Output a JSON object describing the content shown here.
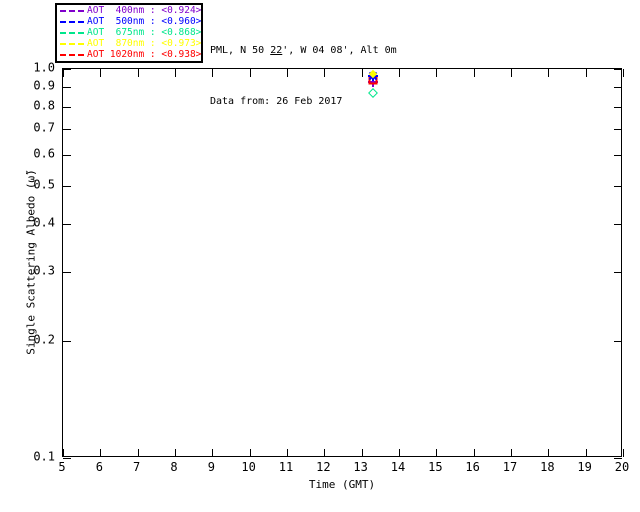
{
  "header": {
    "title_pre": "PML, N 50 ",
    "title_lat_min": "22",
    "title_post": "', W 04 08', Alt 0m",
    "subtitle": "Data from: 26 Feb 2017"
  },
  "legend": {
    "items": [
      {
        "label": "AOT  400nm : <0.924>",
        "wavelength_nm": 400,
        "mean_ssa": 0.924,
        "color": "#8000cc",
        "line_style": "dashed"
      },
      {
        "label": "AOT  500nm : <0.960>",
        "wavelength_nm": 500,
        "mean_ssa": 0.96,
        "color": "#0000ff",
        "line_style": "dashed"
      },
      {
        "label": "AOT  675nm : <0.868>",
        "wavelength_nm": 675,
        "mean_ssa": 0.868,
        "color": "#00e68c",
        "line_style": "dashed"
      },
      {
        "label": "AOT  870nm : <0.973>",
        "wavelength_nm": 870,
        "mean_ssa": 0.973,
        "color": "#ffff00",
        "line_style": "dashed"
      },
      {
        "label": "AOT 1020nm : <0.938>",
        "wavelength_nm": 1020,
        "mean_ssa": 0.938,
        "color": "#ff0000",
        "line_style": "dashed"
      }
    ]
  },
  "chart_data": {
    "type": "scatter",
    "title": "PML, N 50 22', W 04 08', Alt 0m",
    "subtitle": "Data from: 26 Feb 2017",
    "xlabel": "Time (GMT)",
    "ylabel": "Single Scattering Albedo (ω̃)",
    "xlim": [
      5,
      20
    ],
    "ylim": [
      0.1,
      1.0
    ],
    "yscale": "log",
    "grid": false,
    "legend_position": "top-left",
    "x_ticks": [
      5,
      6,
      7,
      8,
      9,
      10,
      11,
      12,
      13,
      14,
      15,
      16,
      17,
      18,
      19,
      20
    ],
    "x_tick_labels": [
      "5",
      "6",
      "7",
      "8",
      "9",
      "10",
      "11",
      "12",
      "13",
      "14",
      "15",
      "16",
      "17",
      "18",
      "19",
      "20"
    ],
    "y_tick_labels": [
      "1.0",
      "0.9",
      "0.8",
      "0.7",
      "0.6",
      "0.5",
      "0.4",
      "0.3",
      "0.2",
      "0.1"
    ],
    "series": [
      {
        "name": "AOT 400nm",
        "wavelength_nm": 400,
        "color": "#8000cc",
        "marker": "plus",
        "x": [
          13.3
        ],
        "y": [
          0.924
        ],
        "mean": 0.924
      },
      {
        "name": "AOT 500nm",
        "wavelength_nm": 500,
        "color": "#0000ff",
        "marker": "asterisk",
        "x": [
          13.3
        ],
        "y": [
          0.96
        ],
        "mean": 0.96
      },
      {
        "name": "AOT 675nm",
        "wavelength_nm": 675,
        "color": "#00e68c",
        "marker": "diamond-open",
        "x": [
          13.3
        ],
        "y": [
          0.868
        ],
        "mean": 0.868
      },
      {
        "name": "AOT 870nm",
        "wavelength_nm": 870,
        "color": "#ffff00",
        "marker": "diamond-filled",
        "x": [
          13.3
        ],
        "y": [
          0.973
        ],
        "mean": 0.973
      },
      {
        "name": "AOT 1020nm",
        "wavelength_nm": 1020,
        "color": "#ff0000",
        "marker": "square-open",
        "x": [
          13.3
        ],
        "y": [
          0.938
        ],
        "mean": 0.938
      }
    ]
  }
}
